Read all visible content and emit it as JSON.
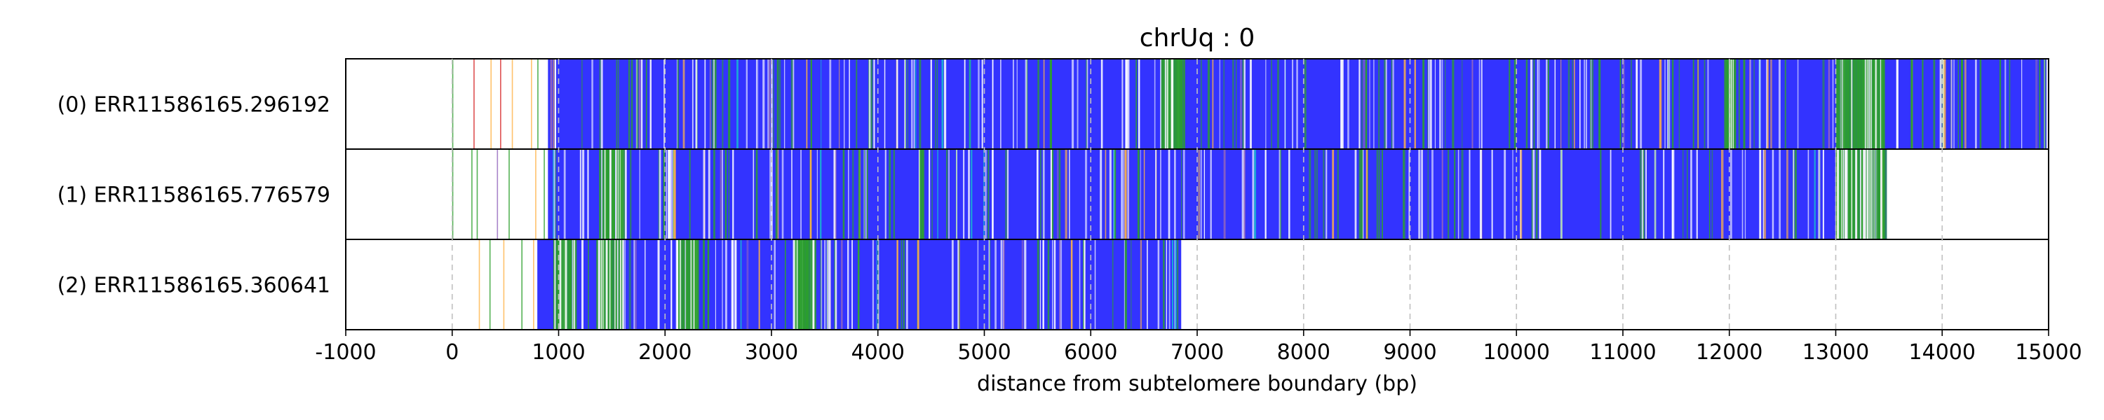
{
  "chart_data": {
    "type": "heatmap",
    "title": "chrUq : 0",
    "xlabel": "distance from subtelomere boundary (bp)",
    "ylabel": "",
    "xlim": [
      -1000,
      15000
    ],
    "xticks": [
      -1000,
      0,
      1000,
      2000,
      3000,
      4000,
      5000,
      6000,
      7000,
      8000,
      9000,
      10000,
      11000,
      12000,
      13000,
      14000,
      15000
    ],
    "xtick_labels": [
      "-1000",
      "0",
      "1000",
      "2000",
      "3000",
      "4000",
      "5000",
      "6000",
      "7000",
      "8000",
      "9000",
      "10000",
      "11000",
      "12000",
      "13000",
      "14000",
      "15000"
    ],
    "grid": "vertical dashed at major x ticks",
    "colors": {
      "main_repeat": "#3333ff",
      "green_mark": "#2ca02c",
      "red_mark": "#d62728",
      "orange_mark": "#ffb347",
      "purple_mark": "#9467bd",
      "cyan_mark": "#17becf",
      "white_gap": "#ffffff",
      "grid": "#c0c0c0"
    },
    "reads": [
      {
        "label": "(0) ERR11586165.296192",
        "start": 900,
        "end": 15000,
        "pre_marks": [
          {
            "x": 0,
            "c": "green"
          },
          {
            "x": 200,
            "c": "red"
          },
          {
            "x": 360,
            "c": "orange"
          },
          {
            "x": 450,
            "c": "red"
          },
          {
            "x": 560,
            "c": "orange"
          },
          {
            "x": 740,
            "c": "orange"
          },
          {
            "x": 800,
            "c": "green"
          }
        ],
        "dense_marks": [
          [
            6650,
            6850
          ],
          [
            11950,
            12050
          ],
          [
            13000,
            13450
          ]
        ]
      },
      {
        "label": "(1) ERR11586165.776579",
        "start": 900,
        "end": 13480,
        "pre_marks": [
          {
            "x": 0,
            "c": "green"
          },
          {
            "x": 180,
            "c": "green"
          },
          {
            "x": 230,
            "c": "green"
          },
          {
            "x": 420,
            "c": "purple"
          },
          {
            "x": 530,
            "c": "green"
          },
          {
            "x": 780,
            "c": "orange"
          },
          {
            "x": 860,
            "c": "green"
          }
        ],
        "dense_marks": [
          [
            1400,
            1600
          ],
          [
            13000,
            13450
          ]
        ]
      },
      {
        "label": "(2) ERR11586165.360641",
        "start": 800,
        "end": 6850,
        "pre_marks": [
          {
            "x": 250,
            "c": "orange"
          },
          {
            "x": 350,
            "c": "green"
          },
          {
            "x": 480,
            "c": "orange"
          },
          {
            "x": 650,
            "c": "green"
          },
          {
            "x": 760,
            "c": "orange"
          }
        ],
        "dense_marks": [
          [
            950,
            1150
          ],
          [
            1350,
            1600
          ],
          [
            2100,
            2300
          ],
          [
            3200,
            3400
          ]
        ]
      }
    ]
  }
}
